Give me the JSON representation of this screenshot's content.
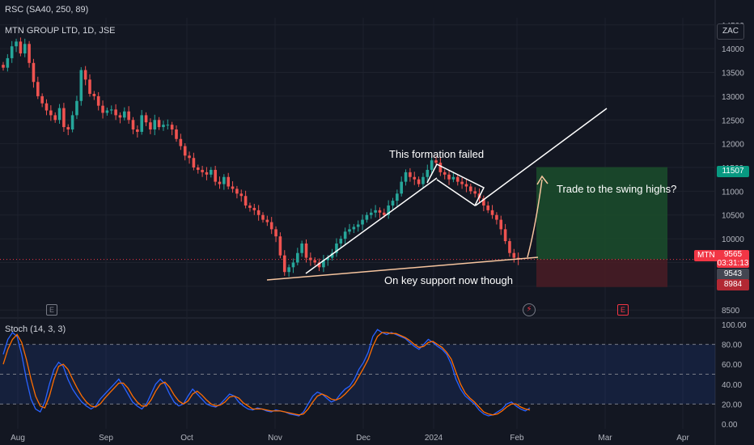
{
  "indicators": {
    "top_label": "RSC (SA40, 250, 89)",
    "main_label": "MTN GROUP LTD, 1D, JSE",
    "stoch_label": "Stoch (14, 3, 3)"
  },
  "currency": "ZAC",
  "price_tags": {
    "high": "11507",
    "symbol": "MTN",
    "last": "9565",
    "countdown": "03:31:13",
    "mid": "9543",
    "low": "8984"
  },
  "annotations": {
    "pattern": "This formation failed",
    "target": "Trade to the swing highs?",
    "support": "On key support now though"
  },
  "events": {
    "earnings_1": "E",
    "earnings_2": "E",
    "dividend": "⚡"
  },
  "colors": {
    "background": "#131722",
    "up": "#26a69a",
    "down": "#ef5350",
    "stoch_k": "#2962ff",
    "stoch_d": "#ff6d00",
    "line_white": "#ffffff",
    "line_orange": "#f7c59f",
    "target_zone": "#1b4d2b",
    "stop_zone": "#4a1c24"
  },
  "chart_data": [
    {
      "type": "candlestick",
      "title": "MTN GROUP LTD, 1D, JSE",
      "x_ticks": [
        "Aug",
        "Sep",
        "Oct",
        "Nov",
        "Dec",
        "2024",
        "Feb",
        "Mar",
        "Apr"
      ],
      "y_ticks": [
        8500,
        9000,
        9500,
        10000,
        10500,
        11000,
        11500,
        12000,
        12500,
        13000,
        13500,
        14000,
        14500
      ],
      "ylim": [
        8350,
        14650
      ],
      "grid": true,
      "series": [
        {
          "closes": [
            13600,
            13800,
            14050,
            14150,
            13900,
            14100,
            13700,
            13300,
            13000,
            12850,
            12700,
            12600,
            12500,
            12750,
            12350,
            12300,
            12600,
            12900,
            13550,
            13350,
            13050,
            13000,
            12800,
            12650,
            12700,
            12720,
            12600,
            12550,
            12680,
            12500,
            12300,
            12250,
            12600,
            12450,
            12300,
            12500,
            12350,
            12400,
            12400,
            12300,
            12100,
            11950,
            11750,
            11700,
            11500,
            11450,
            11400,
            11350,
            11450,
            11200,
            11150,
            11300,
            11100,
            11050,
            10950,
            10900,
            10700,
            10650,
            10600,
            10500,
            10400,
            10350,
            10200,
            10050,
            9650,
            9300,
            9400,
            9500,
            9700,
            9900,
            9600,
            9550,
            9500,
            9400,
            9550,
            9600,
            9700,
            9900,
            10000,
            10150,
            10200,
            10250,
            10300,
            10400,
            10500,
            10550,
            10600,
            10550,
            10500,
            10700,
            10800,
            10950,
            11200,
            11400,
            11300,
            11250,
            11150,
            11300,
            11450,
            11650,
            11600,
            11400,
            11350,
            11250,
            11300,
            11200,
            11150,
            11100,
            11000,
            10950,
            10850,
            10700,
            10600,
            10500,
            10400,
            10200,
            9950,
            9700,
            9600,
            9565
          ]
        },
        {
          "name": "Trade to the swing highs?",
          "zone_top": 11507,
          "entry": 9565,
          "zone_bottom": 8984
        }
      ]
    },
    {
      "type": "line",
      "title": "Stoch (14, 3, 3)",
      "y_ticks": [
        0,
        20,
        40,
        60,
        80,
        100
      ],
      "ylim": [
        -5,
        105
      ],
      "levels": [
        20,
        50,
        80
      ],
      "series": [
        {
          "values": [
            70,
            85,
            92,
            88,
            70,
            45,
            25,
            15,
            12,
            22,
            40,
            55,
            62,
            58,
            45,
            35,
            28,
            22,
            18,
            15,
            18,
            25,
            30,
            35,
            40,
            45,
            38,
            30,
            22,
            18,
            15,
            20,
            30,
            40,
            45,
            40,
            30,
            22,
            18,
            20,
            28,
            35,
            30,
            25,
            20,
            18,
            17,
            20,
            25,
            30,
            28,
            22,
            18,
            15,
            14,
            16,
            15,
            13,
            12,
            14,
            13,
            12,
            10,
            9,
            8,
            12,
            20,
            28,
            32,
            30,
            26,
            22,
            24,
            30,
            35,
            38,
            45,
            55,
            62,
            72,
            88,
            95,
            92,
            90,
            92,
            90,
            88,
            86,
            82,
            78,
            75,
            80,
            85,
            82,
            78,
            75,
            70,
            60,
            45,
            35,
            28,
            24,
            20,
            14,
            10,
            8,
            9,
            12,
            15,
            20,
            22,
            18,
            15,
            13,
            16
          ]
        },
        {
          "values": [
            60,
            75,
            85,
            90,
            82,
            65,
            45,
            28,
            18,
            16,
            28,
            45,
            58,
            60,
            55,
            45,
            36,
            28,
            22,
            18,
            17,
            20,
            26,
            31,
            36,
            41,
            41,
            36,
            28,
            22,
            18,
            18,
            24,
            33,
            40,
            42,
            37,
            29,
            23,
            20,
            23,
            30,
            33,
            29,
            24,
            20,
            18,
            19,
            22,
            27,
            28,
            26,
            21,
            18,
            15,
            15,
            15,
            14,
            13,
            13,
            13,
            12,
            11,
            10,
            9,
            10,
            15,
            22,
            28,
            30,
            28,
            25,
            24,
            26,
            30,
            35,
            40,
            48,
            56,
            65,
            78,
            88,
            92,
            92,
            91,
            91,
            89,
            87,
            84,
            80,
            77,
            78,
            82,
            83,
            80,
            77,
            72,
            65,
            52,
            40,
            31,
            26,
            22,
            17,
            12,
            10,
            9,
            10,
            13,
            17,
            20,
            20,
            17,
            15,
            14
          ]
        }
      ]
    }
  ]
}
